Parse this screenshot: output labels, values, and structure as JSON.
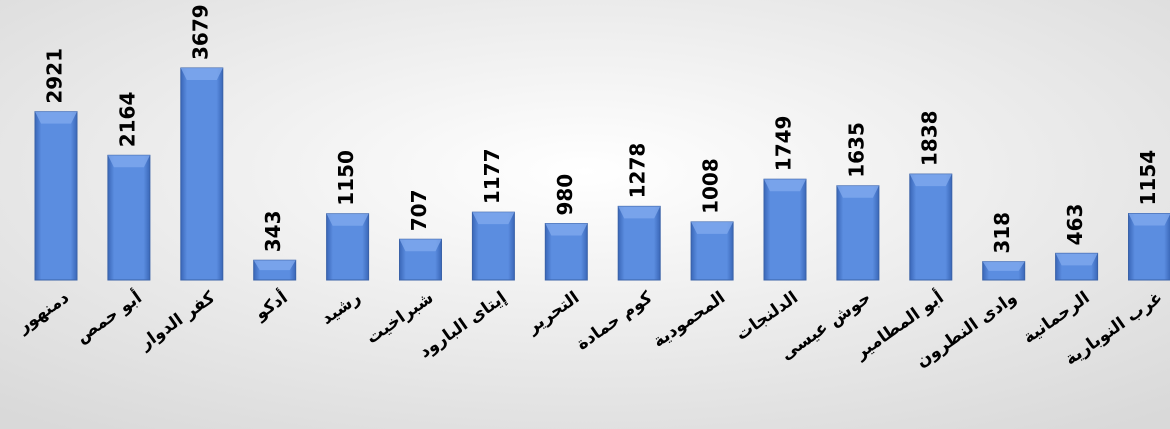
{
  "chart_data": {
    "type": "bar",
    "categories": [
      "دمنهور",
      "أبو حمص",
      "كفر الدوار",
      "أدكو",
      "رشيد",
      "شبراخيت",
      "إيتاى البارود",
      "التحرير",
      "كوم حمادة",
      "المحمودية",
      "الدلنجات",
      "حوش عيسى",
      "أبو المطامير",
      "وادى النطرون",
      "الرحمانية",
      "غرب النوبارية"
    ],
    "values": [
      2921,
      2164,
      3679,
      343,
      1150,
      707,
      1177,
      980,
      1278,
      1008,
      1749,
      1635,
      1838,
      318,
      463,
      1154
    ],
    "color": "#4f81d9"
  }
}
